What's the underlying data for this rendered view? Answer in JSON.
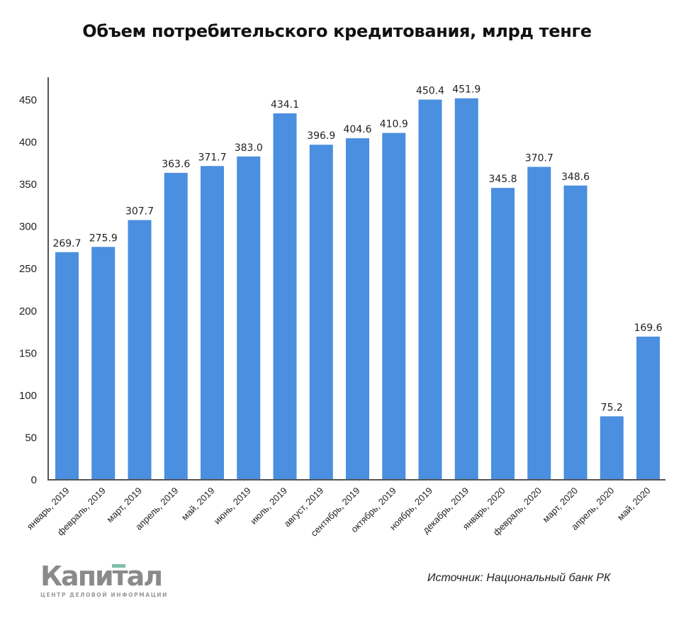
{
  "title": "Объем потребительского кредитования, млрд тенге",
  "footer": {
    "logo_text": "Капитал",
    "logo_subtitle": "ЦЕНТР ДЕЛОВОЙ ИНФОРМАЦИИ",
    "source": "Источник: Национальный банк РК"
  },
  "colors": {
    "bar": "#4a8fe0",
    "axis": "#555555",
    "logo_gray": "#8a8a8a",
    "logo_accent": "#7fbfa8"
  },
  "chart_data": {
    "type": "bar",
    "title": "Объем потребительского кредитования, млрд тенге",
    "xlabel": "",
    "ylabel": "",
    "ylim": [
      0,
      475
    ],
    "yticks": [
      0,
      50,
      100,
      150,
      200,
      250,
      300,
      350,
      400,
      450
    ],
    "grid": false,
    "legend": null,
    "data_labels": true,
    "categories": [
      "январь, 2019",
      "февраль, 2019",
      "март, 2019",
      "апрель, 2019",
      "май, 2019",
      "июнь, 2019",
      "июль, 2019",
      "август, 2019",
      "сентябрь, 2019",
      "октябрь, 2019",
      "ноябрь, 2019",
      "декабрь, 2019",
      "январь, 2020",
      "февраль, 2020",
      "март, 2020",
      "апрель, 2020",
      "май, 2020"
    ],
    "values": [
      269.7,
      275.9,
      307.7,
      363.6,
      371.7,
      383.0,
      434.1,
      396.9,
      404.6,
      410.9,
      450.4,
      451.9,
      345.8,
      370.7,
      348.6,
      75.2,
      169.6
    ],
    "annotation": "Источник: Национальный банк РК"
  }
}
